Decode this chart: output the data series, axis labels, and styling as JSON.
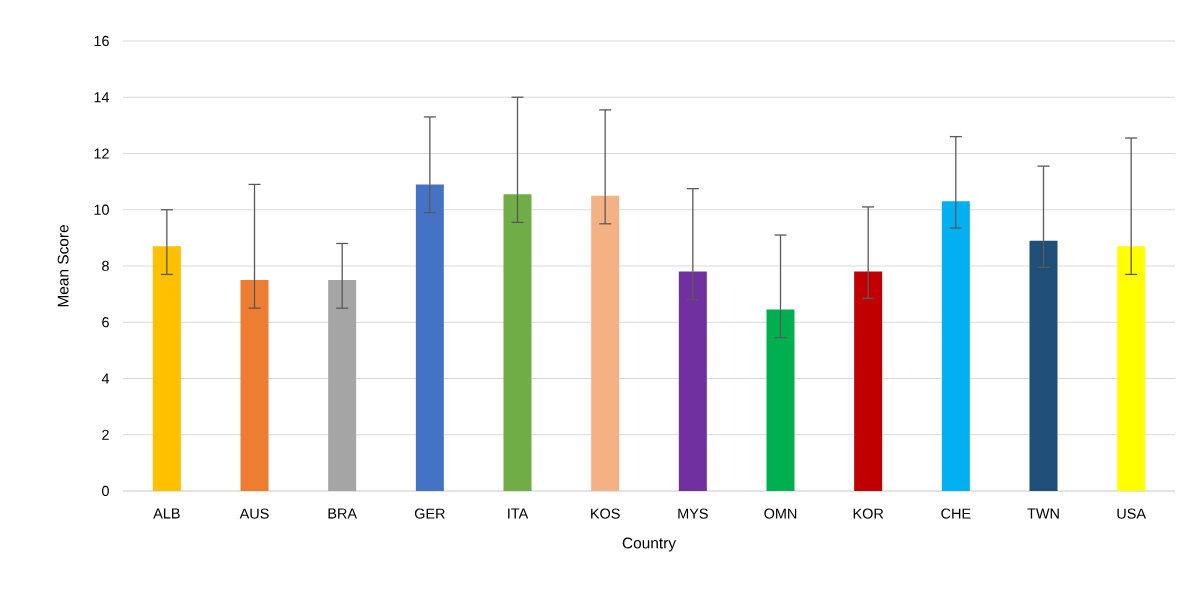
{
  "chart_data": {
    "type": "bar",
    "xlabel": "Country",
    "ylabel": "Mean Score",
    "categories": [
      "ALB",
      "AUS",
      "BRA",
      "GER",
      "ITA",
      "KOS",
      "MYS",
      "OMN",
      "KOR",
      "CHE",
      "TWN",
      "USA"
    ],
    "values": [
      8.7,
      7.5,
      7.5,
      10.9,
      10.55,
      10.5,
      7.8,
      6.45,
      7.8,
      10.3,
      8.9,
      8.7
    ],
    "errors": [
      [
        7.7,
        10.0
      ],
      [
        6.5,
        10.9
      ],
      [
        6.5,
        8.8
      ],
      [
        9.9,
        13.3
      ],
      [
        9.55,
        14.0
      ],
      [
        9.5,
        13.55
      ],
      [
        6.8,
        10.75
      ],
      [
        5.45,
        9.1
      ],
      [
        6.85,
        10.1
      ],
      [
        9.35,
        12.6
      ],
      [
        7.95,
        11.55
      ],
      [
        7.7,
        12.55
      ]
    ],
    "colors": [
      "#ffc000",
      "#ed7d31",
      "#a5a5a5",
      "#4472c4",
      "#70ad47",
      "#f4b183",
      "#7030a0",
      "#00b050",
      "#c00000",
      "#00b0f0",
      "#1f4e79",
      "#ffff00"
    ],
    "ylim": [
      0,
      16
    ],
    "yticks": [
      0,
      2,
      4,
      6,
      8,
      10,
      12,
      14,
      16
    ],
    "grid": "y"
  }
}
